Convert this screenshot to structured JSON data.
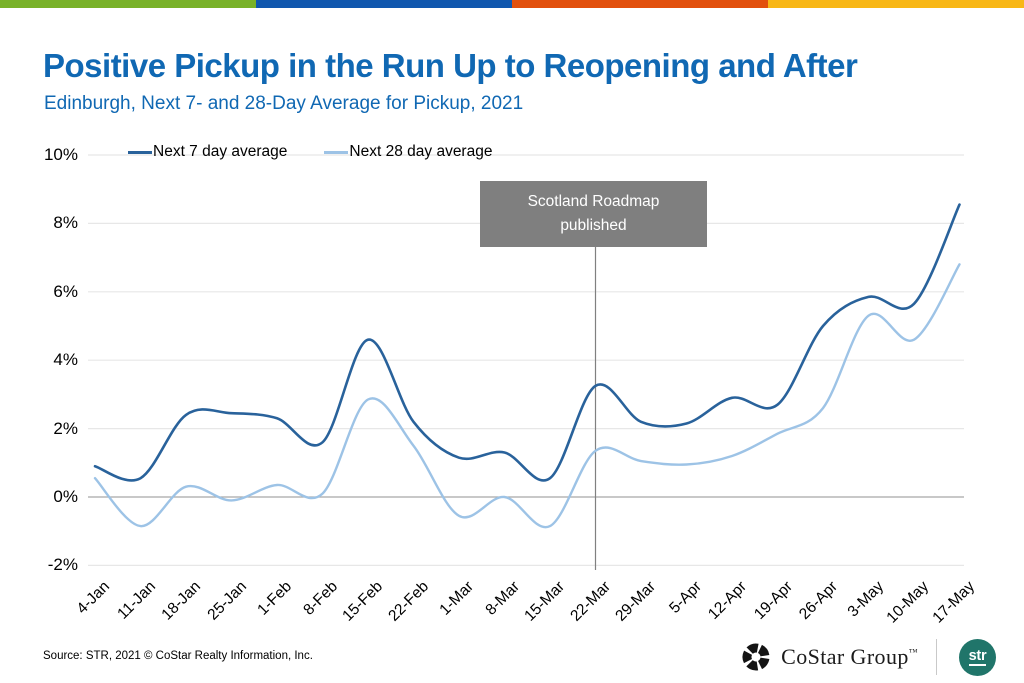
{
  "top_bar": {
    "colors": [
      "#79B229",
      "#1057AE",
      "#E2500D",
      "#F8B716"
    ]
  },
  "header": {
    "title": "Positive Pickup in the Run Up to Reopening and After",
    "subtitle": "Edinburgh, Next 7- and 28-Day Average for Pickup, 2021"
  },
  "legend": {
    "items": [
      {
        "label": "Next 7 day average",
        "color": "#29629B"
      },
      {
        "label": "Next 28 day average",
        "color": "#9DC3E6"
      }
    ]
  },
  "annotation": {
    "text": "Scotland Roadmap published",
    "box_color": "#7F7F7F",
    "text_color": "#FFFFFF",
    "anchor_category": "22-Mar"
  },
  "chart_data": {
    "type": "line",
    "title": "Positive Pickup in the Run Up to Reopening and After",
    "subtitle": "Edinburgh, Next 7- and 28-Day Average for Pickup, 2021",
    "categories": [
      "4-Jan",
      "11-Jan",
      "18-Jan",
      "25-Jan",
      "1-Feb",
      "8-Feb",
      "15-Feb",
      "22-Feb",
      "1-Mar",
      "8-Mar",
      "15-Mar",
      "22-Mar",
      "29-Mar",
      "5-Apr",
      "12-Apr",
      "19-Apr",
      "26-Apr",
      "3-May",
      "10-May",
      "17-May"
    ],
    "series": [
      {
        "name": "Next 7 day average",
        "color": "#29629B",
        "values": [
          0.9,
          0.55,
          2.4,
          2.45,
          2.3,
          1.6,
          4.6,
          2.2,
          1.15,
          1.3,
          0.55,
          3.25,
          2.2,
          2.15,
          2.9,
          2.7,
          5.0,
          5.85,
          5.65,
          8.55
        ]
      },
      {
        "name": "Next 28 day average",
        "color": "#9DC3E6",
        "values": [
          0.55,
          -0.85,
          0.3,
          -0.1,
          0.35,
          0.1,
          2.85,
          1.5,
          -0.55,
          0.0,
          -0.85,
          1.35,
          1.05,
          0.95,
          1.2,
          1.85,
          2.6,
          5.3,
          4.6,
          6.8
        ]
      }
    ],
    "yticks": [
      10,
      8,
      6,
      4,
      2,
      0,
      -2
    ],
    "ytick_suffix": "%",
    "ylim": [
      -2,
      10
    ],
    "grid": "horizontal",
    "legend_position": "top-left",
    "zero_line_emphasized": true
  },
  "footer": {
    "source": "Source: STR, 2021 © CoStar Realty Information, Inc.",
    "costar_label": "CoStar Group",
    "costar_tm": "™",
    "str_label": "str"
  }
}
